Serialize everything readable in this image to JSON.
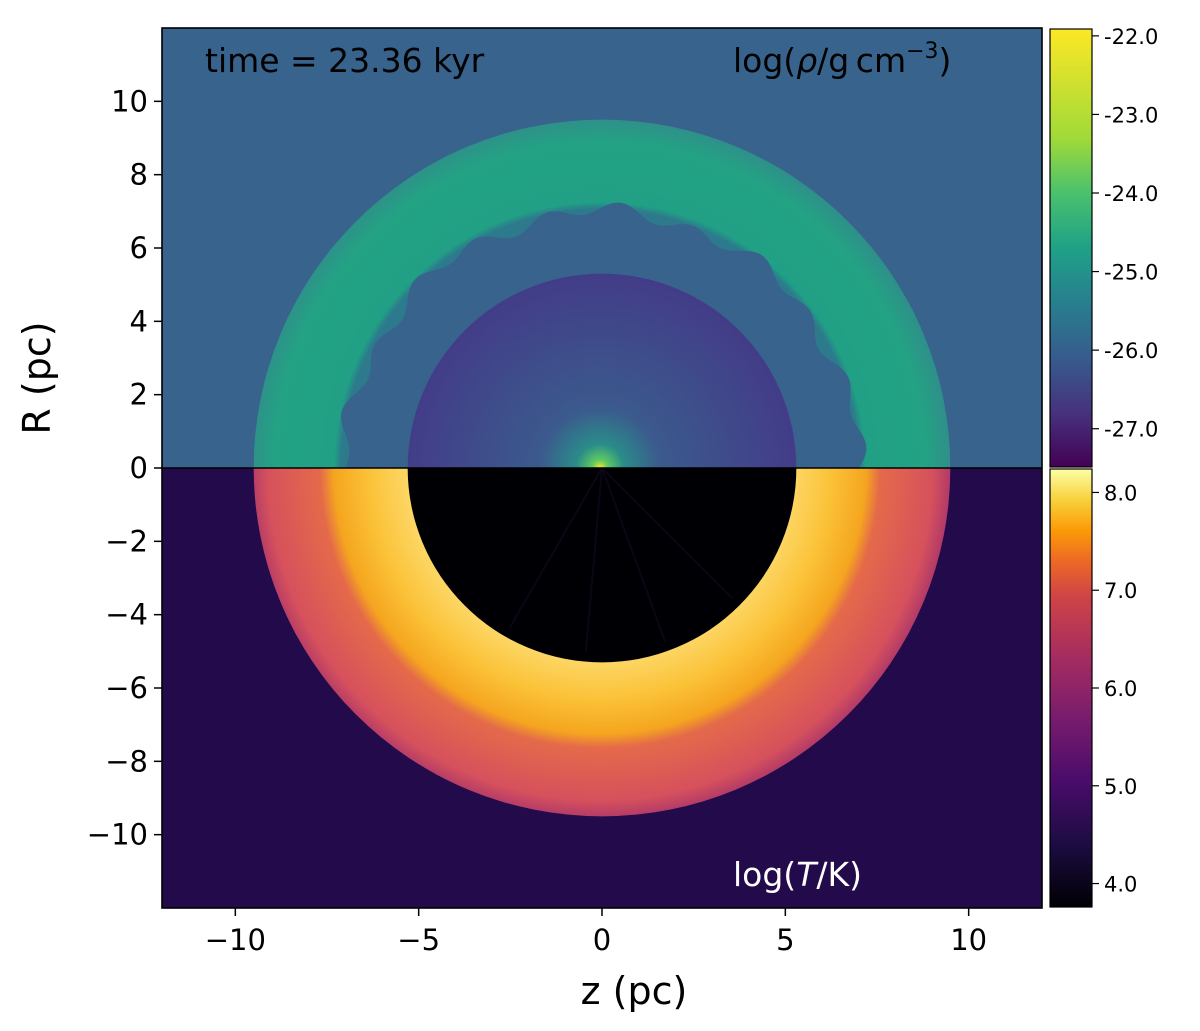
{
  "chart_data": {
    "type": "heatmap",
    "xlabel": "z (pc)",
    "ylabel": "R (pc)",
    "xlim": [
      -12,
      12
    ],
    "ylim": [
      -12,
      12
    ],
    "xticks": [
      -10,
      -5,
      0,
      5,
      10
    ],
    "xtick_labels": [
      "−10",
      "−5",
      "0",
      "5",
      "10"
    ],
    "yticks": [
      10,
      8,
      6,
      4,
      2,
      0,
      -2,
      -4,
      -6,
      -8,
      -10
    ],
    "ytick_labels": [
      "10",
      "8",
      "6",
      "4",
      "2",
      "0",
      "−2",
      "−4",
      "−6",
      "−8",
      "−10"
    ],
    "annotations": {
      "time": "time = 23.36 kyr",
      "density_pre": "log(",
      "density_rho": "ρ",
      "density_unit": "/g cm",
      "density_exp": "−3",
      "density_post": ")",
      "temp_pre": "log(",
      "temp_T": "T",
      "temp_post": "/K)"
    },
    "panels": [
      {
        "name": "density",
        "half": "upper",
        "quantity": "log(rho / g cm^-3)",
        "colormap": "viridis",
        "colorbar": {
          "min": -27.5,
          "max": -21.9,
          "ticks": [
            -22.0,
            -23.0,
            -24.0,
            -25.0,
            -26.0,
            -27.0
          ],
          "tick_labels": [
            "-22.0",
            "-23.0",
            "-24.0",
            "-25.0",
            "-26.0",
            "-27.0"
          ]
        },
        "regions": [
          {
            "name": "ambient medium",
            "value": -25.45
          },
          {
            "name": "swept-up shell",
            "inner_radius_pc": 7.0,
            "outer_radius_pc": 9.5,
            "value": -24.4
          },
          {
            "name": "bubble interior",
            "radius_pc": 5.3,
            "value": -26.4
          },
          {
            "name": "central source",
            "value": -22.5
          }
        ]
      },
      {
        "name": "temperature",
        "half": "lower",
        "quantity": "log(T / K)",
        "colormap": "inferno",
        "colorbar": {
          "min": 3.75,
          "max": 8.25,
          "ticks": [
            8.0,
            7.0,
            6.0,
            5.0,
            4.0
          ],
          "tick_labels": [
            "8.0",
            "7.0",
            "6.0",
            "5.0",
            "4.0"
          ]
        },
        "regions": [
          {
            "name": "ambient medium",
            "value": 4.75
          },
          {
            "name": "outer shell layer",
            "inner_radius_pc": 7.5,
            "outer_radius_pc": 9.5,
            "value": 6.0
          },
          {
            "name": "hot shocked layer",
            "inner_radius_pc": 5.3,
            "outer_radius_pc": 7.5,
            "value": 7.8
          },
          {
            "name": "bubble interior",
            "radius_pc": 5.3,
            "value": 4.0
          }
        ]
      }
    ],
    "colors": {
      "density_ambient": "#37638c",
      "density_shell": "#22a884",
      "density_bubble": "#41408a",
      "density_center": "#fde725",
      "temp_ambient": "#220a4b",
      "temp_outer_shell": "#d9535a",
      "temp_hot_layer": "#fbbd2f",
      "temp_interior": "#000004"
    }
  }
}
